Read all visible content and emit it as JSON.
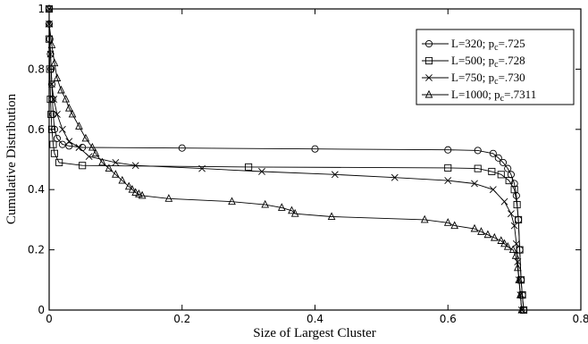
{
  "chart_data": {
    "type": "line",
    "title": "",
    "xlabel": "Size of Largest Cluster",
    "ylabel": "Cumulative Distribution",
    "xlim": [
      0,
      0.8
    ],
    "ylim": [
      0,
      1
    ],
    "x_ticks": [
      "0",
      "0.2",
      "0.4",
      "0.6",
      "0.8"
    ],
    "y_ticks": [
      "0",
      "0.2",
      "0.4",
      "0.6",
      "0.8",
      "1"
    ],
    "grid": false,
    "legend_position": "top-right",
    "series": [
      {
        "name": "L=320; p_c=.725",
        "legend_main": "L=320; p",
        "legend_sub": "c",
        "legend_tail": "=.725",
        "marker": "circle",
        "x": [
          0.0,
          0.0,
          0.001,
          0.002,
          0.003,
          0.004,
          0.005,
          0.006,
          0.008,
          0.012,
          0.02,
          0.03,
          0.05,
          0.2,
          0.4,
          0.6,
          0.645,
          0.668,
          0.676,
          0.683,
          0.69,
          0.695,
          0.7,
          0.703,
          0.706,
          0.708,
          0.71,
          0.712,
          0.714
        ],
        "y": [
          1.0,
          0.95,
          0.9,
          0.85,
          0.8,
          0.75,
          0.7,
          0.65,
          0.6,
          0.57,
          0.55,
          0.545,
          0.54,
          0.538,
          0.535,
          0.532,
          0.53,
          0.52,
          0.505,
          0.49,
          0.47,
          0.45,
          0.42,
          0.38,
          0.3,
          0.2,
          0.1,
          0.05,
          0.0
        ]
      },
      {
        "name": "L=500; p_c=.728",
        "legend_main": "L=500; p",
        "legend_sub": "c",
        "legend_tail": "=.728",
        "marker": "square",
        "x": [
          0.0,
          0.0,
          0.001,
          0.002,
          0.003,
          0.004,
          0.006,
          0.008,
          0.015,
          0.05,
          0.3,
          0.6,
          0.645,
          0.666,
          0.68,
          0.692,
          0.7,
          0.704,
          0.706,
          0.708,
          0.71,
          0.712,
          0.714
        ],
        "y": [
          1.0,
          0.9,
          0.8,
          0.7,
          0.65,
          0.6,
          0.55,
          0.52,
          0.49,
          0.48,
          0.475,
          0.472,
          0.47,
          0.46,
          0.45,
          0.43,
          0.4,
          0.35,
          0.3,
          0.2,
          0.1,
          0.05,
          0.0
        ]
      },
      {
        "name": "L=750; p_c=.730",
        "legend_main": "L=750; p",
        "legend_sub": "c",
        "legend_tail": "=.730",
        "marker": "x",
        "x": [
          0.0,
          0.0,
          0.002,
          0.004,
          0.007,
          0.012,
          0.02,
          0.03,
          0.045,
          0.06,
          0.1,
          0.13,
          0.23,
          0.32,
          0.43,
          0.52,
          0.6,
          0.64,
          0.668,
          0.685,
          0.695,
          0.7,
          0.703,
          0.705,
          0.707,
          0.709,
          0.711
        ],
        "y": [
          1.0,
          0.95,
          0.85,
          0.75,
          0.7,
          0.65,
          0.6,
          0.56,
          0.54,
          0.51,
          0.49,
          0.48,
          0.47,
          0.46,
          0.45,
          0.44,
          0.43,
          0.42,
          0.4,
          0.36,
          0.32,
          0.28,
          0.22,
          0.16,
          0.1,
          0.05,
          0.0
        ]
      },
      {
        "name": "L=1000; p_c=.7311",
        "legend_main": "L=1000; p",
        "legend_sub": "c",
        "legend_tail": "=.7311",
        "marker": "triangle",
        "x": [
          0.0,
          0.0,
          0.004,
          0.008,
          0.012,
          0.018,
          0.025,
          0.03,
          0.035,
          0.045,
          0.055,
          0.065,
          0.07,
          0.08,
          0.09,
          0.1,
          0.11,
          0.12,
          0.125,
          0.13,
          0.135,
          0.14,
          0.18,
          0.275,
          0.325,
          0.35,
          0.365,
          0.37,
          0.425,
          0.565,
          0.6,
          0.61,
          0.64,
          0.65,
          0.66,
          0.67,
          0.68,
          0.685,
          0.69,
          0.698,
          0.702,
          0.705,
          0.707,
          0.709,
          0.711
        ],
        "y": [
          1.0,
          0.95,
          0.88,
          0.82,
          0.77,
          0.73,
          0.7,
          0.67,
          0.65,
          0.61,
          0.57,
          0.54,
          0.52,
          0.49,
          0.47,
          0.45,
          0.43,
          0.41,
          0.4,
          0.39,
          0.385,
          0.38,
          0.37,
          0.36,
          0.35,
          0.34,
          0.33,
          0.32,
          0.31,
          0.3,
          0.29,
          0.28,
          0.27,
          0.26,
          0.25,
          0.24,
          0.23,
          0.22,
          0.21,
          0.2,
          0.18,
          0.14,
          0.1,
          0.05,
          0.0
        ]
      }
    ]
  }
}
